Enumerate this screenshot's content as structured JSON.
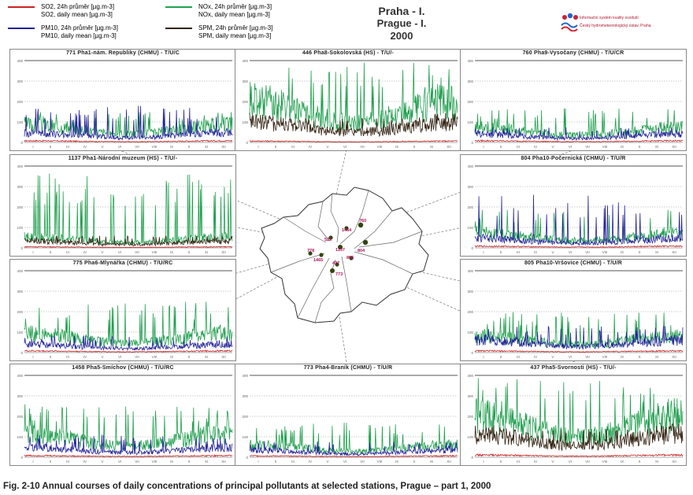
{
  "legend": {
    "items": [
      {
        "line1": "SO2, 24h průměr [µg.m-3]",
        "line2": "SO2, daily mean [µg.m-3]",
        "color": "#cc2222"
      },
      {
        "line1": "PM10, 24h průměr [µg.m-3]",
        "line2": "PM10, daily mean [µg.m-3]",
        "color": "#222299"
      },
      {
        "line1": "NOx, 24h průměr [µg.m-3]",
        "line2": "NOx, daily mean [µg.m-3]",
        "color": "#22a050"
      },
      {
        "line1": "SPM, 24h průměr [µg.m-3]",
        "line2": "SPM, daily mean [µg.m-3]",
        "color": "#332211"
      }
    ]
  },
  "header": {
    "title_cz": "Praha - I.",
    "title_en": "Prague - I.",
    "year": "2000"
  },
  "logo": {
    "line1": "Informační systém kvality ovzduší",
    "line2": "Český hydrometeorologický ústav, Praha"
  },
  "caption": "Fig. 2-10  Annual courses of daily concentrations of principal pollutants at selected stations, Prague – part 1, 2000",
  "map_labels": [
    "760",
    "1464",
    "522",
    "1137",
    "804",
    "778",
    "805",
    "1465",
    "437",
    "773"
  ],
  "chart_data": [
    {
      "type": "line",
      "title": "771 Pha1-nám. Republiky (CHMU)  -  T/U/C",
      "ylim": [
        0,
        400
      ],
      "yticks": [
        0,
        100,
        200,
        300,
        400
      ],
      "xlabel_months": [
        "I",
        "II",
        "III",
        "IV",
        "V",
        "VI",
        "VII",
        "VIII",
        "IX",
        "X",
        "XI",
        "XII"
      ],
      "series": [
        {
          "name": "NOx",
          "level": 65,
          "spike": 150
        },
        {
          "name": "PM10",
          "level": 35,
          "spike": 180
        },
        {
          "name": "SO2",
          "level": 6
        }
      ]
    },
    {
      "type": "line",
      "title": "446 Pha8-Sokolovská (HS)  -  T/U/-",
      "ylim": [
        0,
        400
      ],
      "yticks": [
        0,
        100,
        200,
        300,
        400
      ],
      "xlabel_months": [
        "I",
        "II",
        "III",
        "IV",
        "V",
        "VI",
        "VII",
        "VIII",
        "IX",
        "X",
        "XI",
        "XII"
      ],
      "series": [
        {
          "name": "NOx",
          "level": 150,
          "spike": 390
        },
        {
          "name": "SPM",
          "level": 75,
          "spike": 120
        },
        {
          "name": "SO2",
          "level": 5
        }
      ]
    },
    {
      "type": "line",
      "title": "760 Pha9-Vysočany (CHMU)  -  T/U/CR",
      "ylim": [
        0,
        400
      ],
      "yticks": [
        0,
        100,
        200,
        300,
        400
      ],
      "xlabel_months": [
        "I",
        "II",
        "III",
        "IV",
        "V",
        "VI",
        "VII",
        "VIII",
        "IX",
        "X",
        "XI",
        "XII"
      ],
      "series": [
        {
          "name": "NOx",
          "level": 55,
          "spike": 170
        },
        {
          "name": "PM10",
          "level": 30,
          "spike": 75
        },
        {
          "name": "SO2",
          "level": 6
        }
      ]
    },
    {
      "type": "line",
      "title": "1137 Pha1-Národní muzeum (HS)  -  T/U/-",
      "ylim": [
        0,
        400
      ],
      "yticks": [
        0,
        100,
        200,
        300,
        400
      ],
      "xlabel_months": [
        "I",
        "II",
        "III",
        "IV",
        "V",
        "VI",
        "VII",
        "VIII",
        "IX",
        "X",
        "XI",
        "XII"
      ],
      "series": [
        {
          "name": "NOx",
          "level": 40,
          "spike": 370
        },
        {
          "name": "SPM",
          "level": 25,
          "spike": 60
        },
        {
          "name": "SO2",
          "level": 4
        }
      ]
    },
    {
      "type": "line",
      "title": "804 Pha10-Počernická (CHMU)  -  T/U/R",
      "ylim": [
        0,
        400
      ],
      "yticks": [
        0,
        100,
        200,
        300,
        400
      ],
      "xlabel_months": [
        "I",
        "II",
        "III",
        "IV",
        "V",
        "VI",
        "VII",
        "VIII",
        "IX",
        "X",
        "XI",
        "XII"
      ],
      "series": [
        {
          "name": "NOx",
          "level": 55,
          "spike": 190
        },
        {
          "name": "PM10",
          "level": 35,
          "spike": 260
        },
        {
          "name": "SO2",
          "level": 6
        }
      ]
    },
    {
      "type": "line",
      "title": "775 Pha6-Mlynářka (CHMU)  -  T/U/RC",
      "ylim": [
        0,
        400
      ],
      "yticks": [
        0,
        100,
        200,
        300,
        400
      ],
      "xlabel_months": [
        "I",
        "II",
        "III",
        "IV",
        "V",
        "VI",
        "VII",
        "VIII",
        "IX",
        "X",
        "XI",
        "XII"
      ],
      "series": [
        {
          "name": "NOx",
          "level": 70,
          "spike": 250
        },
        {
          "name": "PM10",
          "level": 30,
          "spike": 85
        },
        {
          "name": "SO2",
          "level": 6
        }
      ]
    },
    {
      "type": "line",
      "title": "805 Pha10-Vršovice (CHMU)  -  T/U/R",
      "ylim": [
        0,
        400
      ],
      "yticks": [
        0,
        100,
        200,
        300,
        400
      ],
      "xlabel_months": [
        "I",
        "II",
        "III",
        "IV",
        "V",
        "VI",
        "VII",
        "VIII",
        "IX",
        "X",
        "XI",
        "XII"
      ],
      "series": [
        {
          "name": "NOx",
          "level": 60,
          "spike": 200
        },
        {
          "name": "PM10",
          "level": 45,
          "spike": 130
        },
        {
          "name": "SO2",
          "level": 6
        }
      ]
    },
    {
      "type": "line",
      "title": "1458 Pha5-Smíchov (CHMU)  -  T/U/RC",
      "ylim": [
        0,
        400
      ],
      "yticks": [
        0,
        100,
        200,
        300,
        400
      ],
      "xlabel_months": [
        "I",
        "II",
        "III",
        "IV",
        "V",
        "VI",
        "VII",
        "VIII",
        "IX",
        "X",
        "XI",
        "XII"
      ],
      "series": [
        {
          "name": "NOx",
          "level": 85,
          "spike": 260
        },
        {
          "name": "PM10",
          "level": 35,
          "spike": 110
        },
        {
          "name": "SO2",
          "level": 6
        }
      ]
    },
    {
      "type": "line",
      "title": "773 Pha4-Braník (CHMU)  -  T/U/R",
      "ylim": [
        0,
        400
      ],
      "yticks": [
        0,
        100,
        200,
        300,
        400
      ],
      "xlabel_months": [
        "I",
        "II",
        "III",
        "IV",
        "V",
        "VI",
        "VII",
        "VIII",
        "IX",
        "X",
        "XI",
        "XII"
      ],
      "series": [
        {
          "name": "NOx",
          "level": 45,
          "spike": 170
        },
        {
          "name": "PM10",
          "level": 25,
          "spike": 80
        },
        {
          "name": "SO2",
          "level": 5
        }
      ]
    },
    {
      "type": "line",
      "title": "437 Pha5-Svornosti (HS)  -  T/U/-",
      "ylim": [
        0,
        400
      ],
      "yticks": [
        0,
        100,
        200,
        300,
        400
      ],
      "xlabel_months": [
        "I",
        "II",
        "III",
        "IV",
        "V",
        "VI",
        "VII",
        "VIII",
        "IX",
        "X",
        "XI",
        "XII"
      ],
      "series": [
        {
          "name": "NOx",
          "level": 150,
          "spike": 390
        },
        {
          "name": "SPM",
          "level": 85,
          "spike": 140
        },
        {
          "name": "SO2",
          "level": 8
        }
      ]
    }
  ]
}
